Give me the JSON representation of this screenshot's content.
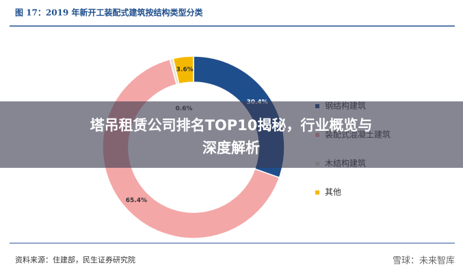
{
  "chart_data": {
    "type": "donut",
    "title": "图 17：2019 年新开工装配式建筑按结构类型分类",
    "categories": [
      "钢结构建筑",
      "装配式混凝土建筑",
      "木结构建筑",
      "其他"
    ],
    "values": [
      30.4,
      65.4,
      0.6,
      3.6
    ],
    "value_labels": [
      "30.4%",
      "65.4%",
      "0.6%",
      "3.6%"
    ],
    "colors": [
      "#1f4e8c",
      "#f4a7a7",
      "#e6e2cf",
      "#f5b800"
    ],
    "legend": "right"
  },
  "source": "资料来源：住建部，民生证券研究院",
  "overlay_title": [
    "塔吊租赁公司排名TOP10揭秘，行业概览与",
    "深度解析"
  ],
  "watermark": "雪球：未来智库"
}
